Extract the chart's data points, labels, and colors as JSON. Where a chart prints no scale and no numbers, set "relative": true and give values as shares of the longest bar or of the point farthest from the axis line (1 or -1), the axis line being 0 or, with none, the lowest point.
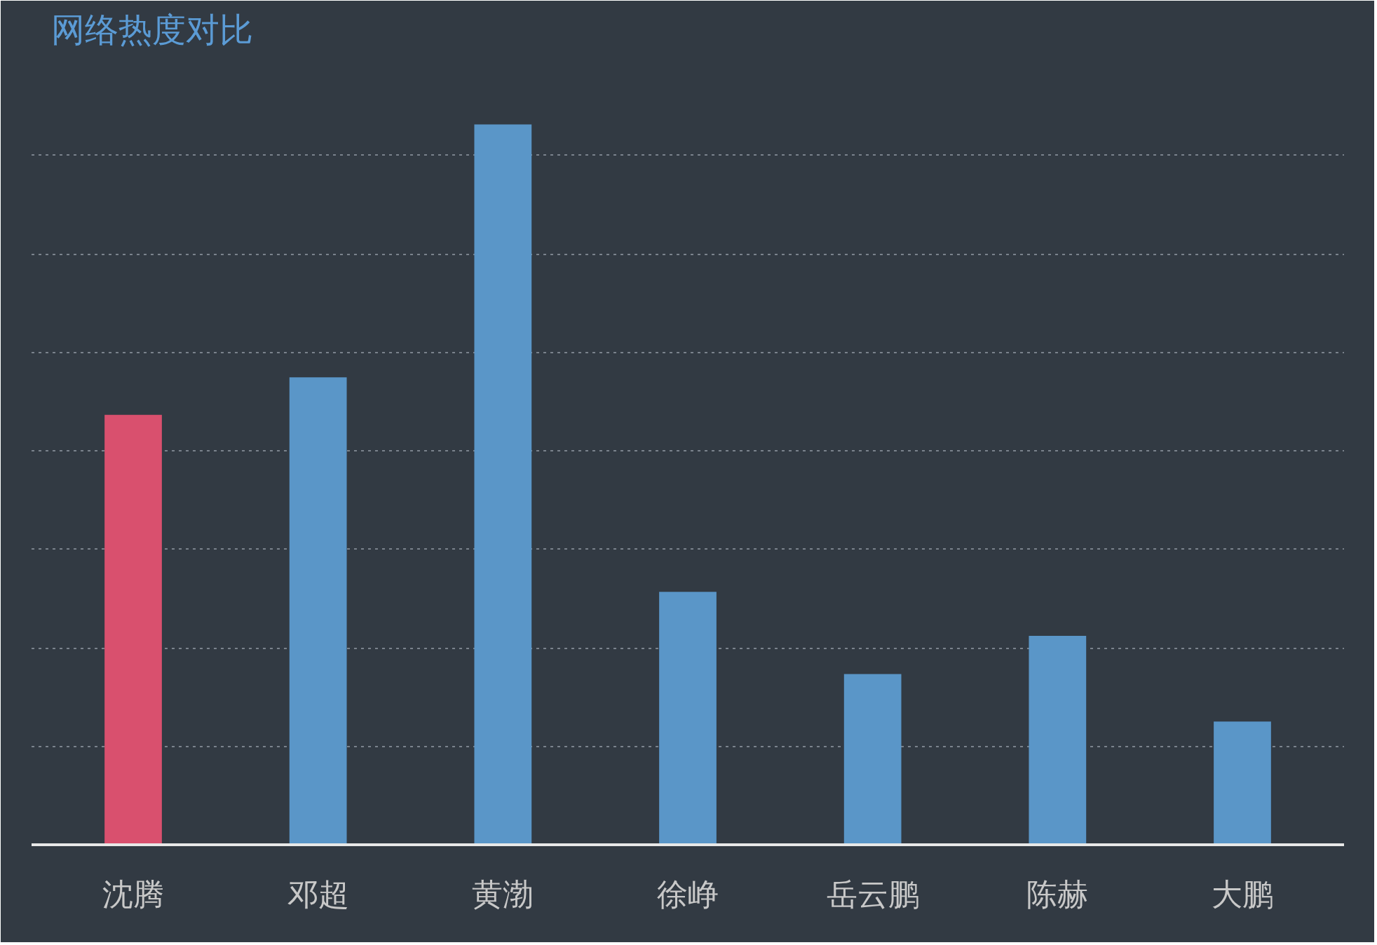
{
  "chart_data": {
    "type": "bar",
    "title": "网络热度对比",
    "relative": true,
    "grid": "y",
    "categories": [
      "沈腾",
      "邓超",
      "黄渤",
      "徐峥",
      "岳云鹏",
      "陈赫",
      "大鹏"
    ],
    "values": [
      0.597,
      0.649,
      1,
      0.351,
      0.237,
      0.29,
      0.171
    ],
    "colors": [
      "#d9506e",
      "#5a96c8",
      "#5a96c8",
      "#5a96c8",
      "#5a96c8",
      "#5a96c8",
      "#5a96c8"
    ]
  }
}
